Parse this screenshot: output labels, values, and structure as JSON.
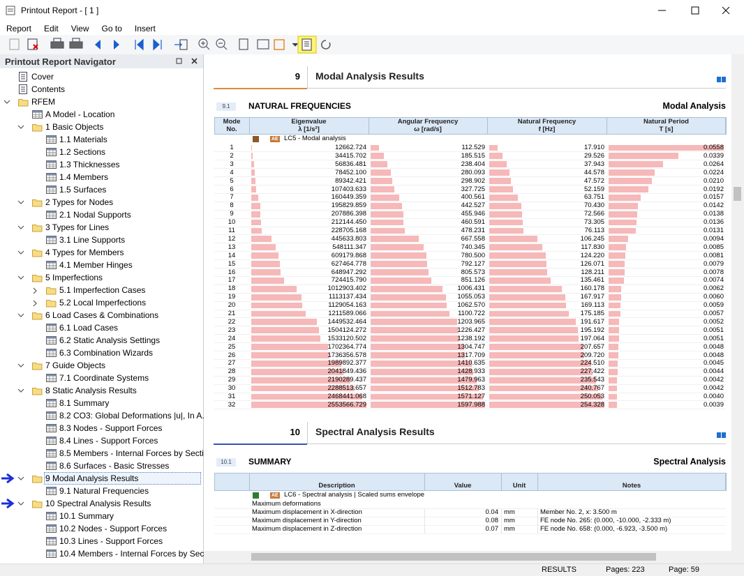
{
  "window": {
    "title": "Printout Report - [ 1 ]"
  },
  "menu": [
    "Report",
    "Edit",
    "View",
    "Go to",
    "Insert"
  ],
  "navigator": {
    "title": "Printout Report Navigator",
    "items": [
      {
        "label": "Cover"
      },
      {
        "label": "Contents"
      },
      {
        "label": "RFEM",
        "children": [
          {
            "label": "A Model - Location"
          },
          {
            "label": "1 Basic Objects",
            "children": [
              {
                "label": "1.1 Materials"
              },
              {
                "label": "1.2 Sections"
              },
              {
                "label": "1.3 Thicknesses"
              },
              {
                "label": "1.4 Members"
              },
              {
                "label": "1.5 Surfaces"
              }
            ]
          },
          {
            "label": "2 Types for Nodes",
            "children": [
              {
                "label": "2.1 Nodal Supports"
              }
            ]
          },
          {
            "label": "3 Types for Lines",
            "children": [
              {
                "label": "3.1 Line Supports"
              }
            ]
          },
          {
            "label": "4 Types for Members",
            "children": [
              {
                "label": "4.1 Member Hinges"
              }
            ]
          },
          {
            "label": "5 Imperfections",
            "children": [
              {
                "label": "5.1 Imperfection Cases",
                "expanded": false
              },
              {
                "label": "5.2 Local Imperfections",
                "expanded": false
              }
            ]
          },
          {
            "label": "6 Load Cases & Combinations",
            "children": [
              {
                "label": "6.1 Load Cases"
              },
              {
                "label": "6.2 Static Analysis Settings"
              },
              {
                "label": "6.3 Combination Wizards"
              }
            ]
          },
          {
            "label": "7 Guide Objects",
            "children": [
              {
                "label": "7.1 Coordinate Systems"
              }
            ]
          },
          {
            "label": "8 Static Analysis Results",
            "children": [
              {
                "label": "8.1 Summary"
              },
              {
                "label": "8.2 CO3: Global Deformations |u|, In A..."
              },
              {
                "label": "8.3 Nodes - Support Forces"
              },
              {
                "label": "8.4 Lines - Support Forces"
              },
              {
                "label": "8.5 Members - Internal Forces by Section"
              },
              {
                "label": "8.6 Surfaces - Basic Stresses"
              }
            ]
          },
          {
            "label": "9 Modal Analysis Results",
            "selected": true,
            "children": [
              {
                "label": "9.1 Natural Frequencies"
              }
            ]
          },
          {
            "label": "10 Spectral Analysis Results",
            "children": [
              {
                "label": "10.1 Summary"
              },
              {
                "label": "10.2 Nodes - Support Forces"
              },
              {
                "label": "10.3 Lines - Support Forces"
              },
              {
                "label": "10.4 Members - Internal Forces by Section"
              }
            ]
          }
        ]
      }
    ]
  },
  "report": {
    "sections": [
      {
        "number": "9",
        "title": "Modal Analysis Results",
        "subsection": {
          "number": "9.1",
          "title": "NATURAL FREQUENCIES",
          "category": "Modal Analysis",
          "table": {
            "headers": [
              [
                "Mode",
                "No."
              ],
              [
                "Eigenvalue",
                "λ [1/s²]"
              ],
              [
                "Angular Frequency",
                "ω [rad/s]"
              ],
              [
                "Natural Frequency",
                "f [Hz]"
              ],
              [
                "Natural Period",
                "T [s]"
              ]
            ],
            "group": {
              "badge": "AE",
              "label": "LC5 - Modal analysis"
            },
            "rows": [
              [
                "1",
                "12662.724",
                "112.529",
                "17.910",
                "0.0558"
              ],
              [
                "2",
                "34415.702",
                "185.515",
                "29.526",
                "0.0339"
              ],
              [
                "3",
                "56836.481",
                "238.404",
                "37.943",
                "0.0264"
              ],
              [
                "4",
                "78452.100",
                "280.093",
                "44.578",
                "0.0224"
              ],
              [
                "5",
                "89342.421",
                "298.902",
                "47.572",
                "0.0210"
              ],
              [
                "6",
                "107403.633",
                "327.725",
                "52.159",
                "0.0192"
              ],
              [
                "7",
                "160449.359",
                "400.561",
                "63.751",
                "0.0157"
              ],
              [
                "8",
                "195829.859",
                "442.527",
                "70.430",
                "0.0142"
              ],
              [
                "9",
                "207886.398",
                "455.946",
                "72.566",
                "0.0138"
              ],
              [
                "10",
                "212144.450",
                "460.591",
                "73.305",
                "0.0136"
              ],
              [
                "11",
                "228705.168",
                "478.231",
                "76.113",
                "0.0131"
              ],
              [
                "12",
                "445633.803",
                "667.558",
                "106.245",
                "0.0094"
              ],
              [
                "13",
                "548111.347",
                "740.345",
                "117.830",
                "0.0085"
              ],
              [
                "14",
                "609179.868",
                "780.500",
                "124.220",
                "0.0081"
              ],
              [
                "15",
                "627464.778",
                "792.127",
                "126.071",
                "0.0079"
              ],
              [
                "16",
                "648947.292",
                "805.573",
                "128.211",
                "0.0078"
              ],
              [
                "17",
                "724415.790",
                "851.126",
                "135.461",
                "0.0074"
              ],
              [
                "18",
                "1012903.402",
                "1006.431",
                "160.178",
                "0.0062"
              ],
              [
                "19",
                "1113137.434",
                "1055.053",
                "167.917",
                "0.0060"
              ],
              [
                "20",
                "1129054.163",
                "1062.570",
                "169.113",
                "0.0059"
              ],
              [
                "21",
                "1211589.066",
                "1100.722",
                "175.185",
                "0.0057"
              ],
              [
                "22",
                "1449532.464",
                "1203.965",
                "191.617",
                "0.0052"
              ],
              [
                "23",
                "1504124.272",
                "1226.427",
                "195.192",
                "0.0051"
              ],
              [
                "24",
                "1533120.502",
                "1238.192",
                "197.064",
                "0.0051"
              ],
              [
                "25",
                "1702364.774",
                "1304.747",
                "207.657",
                "0.0048"
              ],
              [
                "26",
                "1736356.578",
                "1317.709",
                "209.720",
                "0.0048"
              ],
              [
                "27",
                "1989892.377",
                "1410.635",
                "224.510",
                "0.0045"
              ],
              [
                "28",
                "2041849.436",
                "1428.933",
                "227.422",
                "0.0044"
              ],
              [
                "29",
                "2190289.437",
                "1479.963",
                "235.543",
                "0.0042"
              ],
              [
                "30",
                "2288513.657",
                "1512.783",
                "240.767",
                "0.0042"
              ],
              [
                "31",
                "2468441.068",
                "1571.127",
                "250.053",
                "0.0040"
              ],
              [
                "32",
                "2553566.729",
                "1597.988",
                "254.328",
                "0.0039"
              ]
            ]
          }
        }
      },
      {
        "number": "10",
        "title": "Spectral Analysis Results",
        "subsection": {
          "number": "10.1",
          "title": "SUMMARY",
          "category": "Spectral Analysis",
          "table": {
            "headers": [
              [
                "Description"
              ],
              [
                "Value"
              ],
              [
                "Unit"
              ],
              [
                "Notes"
              ]
            ],
            "group": {
              "badge": "AE",
              "label": "LC6 - Spectral analysis | Scaled sums envelope"
            },
            "rows": [
              [
                "Maximum deformations"
              ],
              [
                "Maximum displacement in X-direction",
                "0.04",
                "mm",
                "Member No. 2, x: 3.500 m"
              ],
              [
                "Maximum displacement in Y-direction",
                "0.08",
                "mm",
                "FE node No. 265: (0.000, -10.000, -2.333 m)"
              ],
              [
                "Maximum displacement in Z-direction",
                "0.07",
                "mm",
                "FE node No. 658: (0.000, -6.923, -3.500 m)"
              ]
            ]
          }
        }
      }
    ]
  },
  "status_bar": {
    "mode": "RESULTS",
    "pages": "Pages: 223",
    "page": "Page: 59"
  }
}
